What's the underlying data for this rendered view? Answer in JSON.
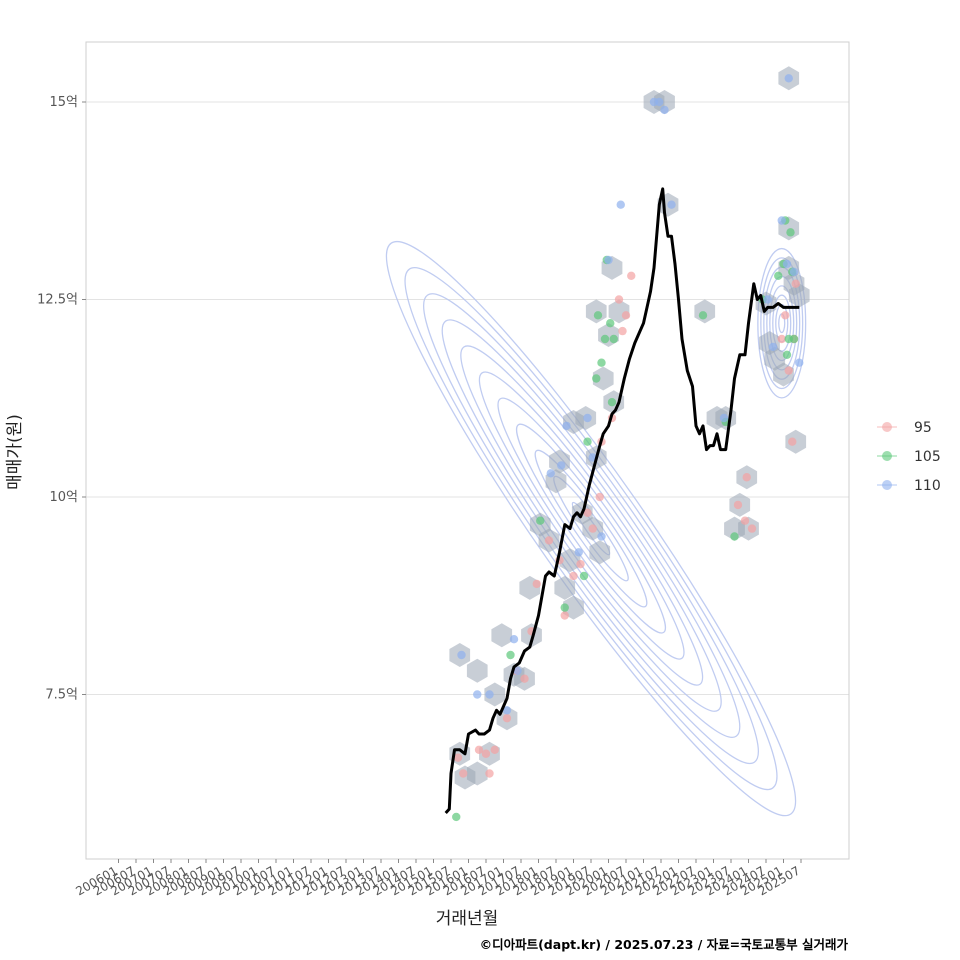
{
  "chart_data": {
    "type": "scatter",
    "title": "",
    "xlabel": "거래년월",
    "ylabel": "매매가(원)",
    "caption": "©디아파트(dapt.kr) / 2025.07.23 / 자료=국토교통부 실거래가",
    "xlim": [
      2006.0,
      2026.5
    ],
    "ylim": [
      5.7,
      15.7
    ],
    "y_ticks": [
      {
        "value": 7.5,
        "label": "7.5억"
      },
      {
        "value": 10,
        "label": "10억"
      },
      {
        "value": 12.5,
        "label": "12.5억"
      },
      {
        "value": 15,
        "label": "15억"
      }
    ],
    "x_ticks": [
      "200601",
      "200607",
      "200701",
      "200707",
      "200801",
      "200807",
      "200901",
      "200907",
      "201001",
      "201007",
      "201101",
      "201107",
      "201201",
      "201207",
      "201301",
      "201307",
      "201401",
      "201407",
      "201501",
      "201507",
      "201601",
      "201607",
      "201701",
      "201707",
      "201801",
      "201807",
      "201901",
      "201907",
      "202001",
      "202007",
      "202101",
      "202107",
      "202201",
      "202207",
      "202301",
      "202307",
      "202401",
      "202407",
      "202501",
      "202507"
    ],
    "legend": {
      "position": "right",
      "entries": [
        {
          "label": "95",
          "color": "#F4A3A3"
        },
        {
          "label": "105",
          "color": "#5CC87A"
        },
        {
          "label": "110",
          "color": "#8FB0EE"
        }
      ]
    },
    "trend_line": {
      "name": "median price",
      "x": [
        2015.35,
        2015.45,
        2015.5,
        2015.6,
        2015.75,
        2015.9,
        2016.0,
        2016.2,
        2016.3,
        2016.45,
        2016.6,
        2016.7,
        2016.8,
        2016.9,
        2017.0,
        2017.1,
        2017.2,
        2017.3,
        2017.45,
        2017.6,
        2017.75,
        2017.85,
        2018.0,
        2018.1,
        2018.2,
        2018.3,
        2018.45,
        2018.6,
        2018.75,
        2018.9,
        2019.0,
        2019.1,
        2019.2,
        2019.3,
        2019.45,
        2019.6,
        2019.75,
        2019.85,
        2020.0,
        2020.1,
        2020.2,
        2020.3,
        2020.45,
        2020.6,
        2020.75,
        2020.9,
        2021.0,
        2021.1,
        2021.2,
        2021.3,
        2021.45,
        2021.55,
        2021.6,
        2021.7,
        2021.8,
        2021.9,
        2022.0,
        2022.1,
        2022.25,
        2022.4,
        2022.5,
        2022.6,
        2022.7,
        2022.8,
        2022.9,
        2023.0,
        2023.1,
        2023.2,
        2023.35,
        2023.5,
        2023.6,
        2023.75,
        2023.9,
        2024.0,
        2024.15,
        2024.25,
        2024.35,
        2024.45,
        2024.55,
        2024.7,
        2024.85,
        2025.0,
        2025.2,
        2025.45
      ],
      "y": [
        6.0,
        6.05,
        6.5,
        6.8,
        6.8,
        6.75,
        7.0,
        7.05,
        7.0,
        7.0,
        7.05,
        7.2,
        7.3,
        7.25,
        7.35,
        7.45,
        7.7,
        7.85,
        7.9,
        8.05,
        8.1,
        8.25,
        8.5,
        8.75,
        9.0,
        9.05,
        9.0,
        9.3,
        9.65,
        9.6,
        9.75,
        9.8,
        9.75,
        9.85,
        10.15,
        10.4,
        10.65,
        10.8,
        10.9,
        11.05,
        11.1,
        11.2,
        11.5,
        11.75,
        11.95,
        12.1,
        12.2,
        12.4,
        12.6,
        12.9,
        13.7,
        13.9,
        13.6,
        13.3,
        13.3,
        12.95,
        12.5,
        12.0,
        11.6,
        11.4,
        10.9,
        10.8,
        10.9,
        10.6,
        10.65,
        10.65,
        10.8,
        10.6,
        10.6,
        11.1,
        11.5,
        11.8,
        11.8,
        12.2,
        12.7,
        12.5,
        12.55,
        12.35,
        12.4,
        12.4,
        12.45,
        12.4,
        12.4,
        12.4
      ],
      "color": "#000000"
    },
    "series": [
      {
        "name": "95",
        "color": "#F4A3A3",
        "points": [
          [
            2015.7,
            6.7
          ],
          [
            2015.85,
            6.5
          ],
          [
            2016.3,
            6.8
          ],
          [
            2016.5,
            6.75
          ],
          [
            2016.6,
            6.5
          ],
          [
            2016.75,
            6.8
          ],
          [
            2017.1,
            7.2
          ],
          [
            2017.35,
            7.8
          ],
          [
            2017.6,
            7.7
          ],
          [
            2017.8,
            8.3
          ],
          [
            2017.95,
            8.9
          ],
          [
            2018.3,
            9.45
          ],
          [
            2018.6,
            9.2
          ],
          [
            2018.75,
            8.5
          ],
          [
            2019.0,
            9.0
          ],
          [
            2019.2,
            9.15
          ],
          [
            2019.4,
            9.8
          ],
          [
            2019.55,
            9.6
          ],
          [
            2019.75,
            10.0
          ],
          [
            2019.8,
            10.7
          ],
          [
            2020.1,
            11.0
          ],
          [
            2020.3,
            12.5
          ],
          [
            2020.4,
            12.1
          ],
          [
            2020.5,
            12.3
          ],
          [
            2020.65,
            12.8
          ],
          [
            2023.7,
            9.9
          ],
          [
            2023.9,
            9.7
          ],
          [
            2023.95,
            10.25
          ],
          [
            2024.1,
            9.6
          ],
          [
            2024.95,
            12.0
          ],
          [
            2025.05,
            12.3
          ],
          [
            2025.15,
            11.6
          ],
          [
            2025.25,
            10.7
          ],
          [
            2025.35,
            12.7
          ],
          [
            2025.3,
            12.0
          ]
        ]
      },
      {
        "name": "105",
        "color": "#5CC87A",
        "points": [
          [
            2015.65,
            5.95
          ],
          [
            2017.2,
            8.0
          ],
          [
            2018.05,
            9.7
          ],
          [
            2018.75,
            8.6
          ],
          [
            2019.3,
            9.0
          ],
          [
            2019.4,
            10.7
          ],
          [
            2019.65,
            11.5
          ],
          [
            2019.7,
            12.3
          ],
          [
            2019.8,
            11.7
          ],
          [
            2019.9,
            12.0
          ],
          [
            2019.95,
            13.0
          ],
          [
            2020.05,
            12.2
          ],
          [
            2020.1,
            11.2
          ],
          [
            2020.15,
            12.0
          ],
          [
            2022.7,
            12.3
          ],
          [
            2023.35,
            10.95
          ],
          [
            2023.6,
            9.5
          ],
          [
            2024.4,
            12.5
          ],
          [
            2024.85,
            12.8
          ],
          [
            2025.0,
            12.95
          ],
          [
            2025.05,
            13.5
          ],
          [
            2025.1,
            11.8
          ],
          [
            2025.15,
            12.0
          ],
          [
            2025.2,
            13.35
          ],
          [
            2025.25,
            12.85
          ],
          [
            2025.3,
            12.0
          ]
        ]
      },
      {
        "name": "110",
        "color": "#8FB0EE",
        "points": [
          [
            2015.8,
            8.0
          ],
          [
            2016.25,
            7.5
          ],
          [
            2016.6,
            7.5
          ],
          [
            2017.1,
            7.3
          ],
          [
            2017.3,
            8.2
          ],
          [
            2017.4,
            7.8
          ],
          [
            2018.35,
            10.3
          ],
          [
            2018.65,
            10.4
          ],
          [
            2018.8,
            10.9
          ],
          [
            2019.15,
            9.3
          ],
          [
            2019.4,
            11.0
          ],
          [
            2019.55,
            10.5
          ],
          [
            2019.8,
            9.5
          ],
          [
            2020.0,
            13.0
          ],
          [
            2020.35,
            13.7
          ],
          [
            2021.3,
            15.0
          ],
          [
            2021.45,
            15.0
          ],
          [
            2021.6,
            14.9
          ],
          [
            2021.8,
            13.7
          ],
          [
            2023.3,
            11.0
          ],
          [
            2024.55,
            12.5
          ],
          [
            2024.7,
            11.9
          ],
          [
            2024.95,
            13.5
          ],
          [
            2025.1,
            12.95
          ],
          [
            2025.15,
            15.3
          ],
          [
            2025.3,
            12.85
          ],
          [
            2025.45,
            11.7
          ]
        ]
      }
    ],
    "hexbins": [
      [
        2015.75,
        6.75
      ],
      [
        2015.9,
        6.45
      ],
      [
        2015.75,
        8.0
      ],
      [
        2016.25,
        7.8
      ],
      [
        2016.25,
        6.5
      ],
      [
        2016.6,
        6.75
      ],
      [
        2016.75,
        7.5
      ],
      [
        2016.95,
        8.25
      ],
      [
        2017.1,
        7.2
      ],
      [
        2017.3,
        7.75
      ],
      [
        2017.6,
        7.7
      ],
      [
        2017.8,
        8.25
      ],
      [
        2017.75,
        8.85
      ],
      [
        2018.05,
        9.65
      ],
      [
        2018.3,
        9.45
      ],
      [
        2018.5,
        10.2
      ],
      [
        2018.6,
        10.45
      ],
      [
        2018.75,
        8.85
      ],
      [
        2018.9,
        9.2
      ],
      [
        2019.0,
        8.6
      ],
      [
        2019.25,
        9.8
      ],
      [
        2019.55,
        9.6
      ],
      [
        2019.75,
        9.3
      ],
      [
        2019.0,
        10.95
      ],
      [
        2019.35,
        11.0
      ],
      [
        2019.65,
        10.5
      ],
      [
        2019.65,
        12.35
      ],
      [
        2019.85,
        11.5
      ],
      [
        2020.0,
        12.05
      ],
      [
        2020.15,
        11.2
      ],
      [
        2020.1,
        12.9
      ],
      [
        2020.3,
        12.35
      ],
      [
        2021.3,
        15.0
      ],
      [
        2021.6,
        15.0
      ],
      [
        2021.7,
        13.7
      ],
      [
        2022.75,
        12.35
      ],
      [
        2023.1,
        11.0
      ],
      [
        2023.35,
        11.0
      ],
      [
        2023.75,
        9.9
      ],
      [
        2023.95,
        10.25
      ],
      [
        2023.6,
        9.6
      ],
      [
        2024.0,
        9.6
      ],
      [
        2024.5,
        12.45
      ],
      [
        2024.6,
        11.95
      ],
      [
        2024.75,
        11.75
      ],
      [
        2025.0,
        11.55
      ],
      [
        2025.15,
        12.9
      ],
      [
        2025.15,
        13.4
      ],
      [
        2025.3,
        12.7
      ],
      [
        2025.45,
        12.55
      ],
      [
        2025.15,
        15.3
      ],
      [
        2025.35,
        10.7
      ]
    ],
    "density_contours": "kde by unit size",
    "grid": true
  }
}
